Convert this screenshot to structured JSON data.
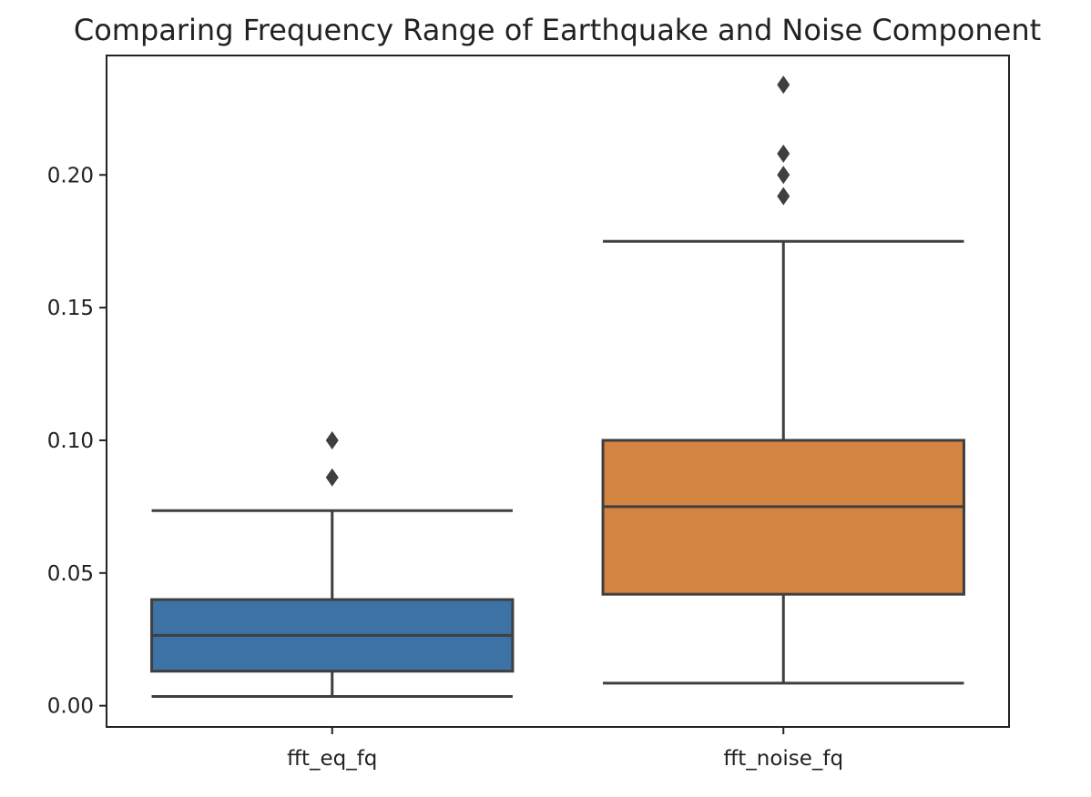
{
  "chart_data": {
    "type": "box",
    "title": "Comparing Frequency Range of Earthquake and Noise Component",
    "xlabel": "",
    "ylabel": "",
    "ylim": [
      -0.008,
      0.245
    ],
    "yticks": [
      0.0,
      0.05,
      0.1,
      0.15,
      0.2
    ],
    "ytick_labels": [
      "0.00",
      "0.05",
      "0.10",
      "0.15",
      "0.20"
    ],
    "grid": false,
    "categories": [
      "fft_eq_fq",
      "fft_noise_fq"
    ],
    "boxes": [
      {
        "category": "fft_eq_fq",
        "color": "#3d72a4",
        "whisker_low": 0.0035,
        "q1": 0.013,
        "median": 0.0265,
        "q3": 0.04,
        "whisker_high": 0.0735,
        "outliers": [
          0.086,
          0.1
        ]
      },
      {
        "category": "fft_noise_fq",
        "color": "#d48441",
        "whisker_low": 0.0085,
        "q1": 0.042,
        "median": 0.075,
        "q3": 0.1,
        "whisker_high": 0.175,
        "outliers": [
          0.192,
          0.2,
          0.208,
          0.234
        ]
      }
    ]
  }
}
